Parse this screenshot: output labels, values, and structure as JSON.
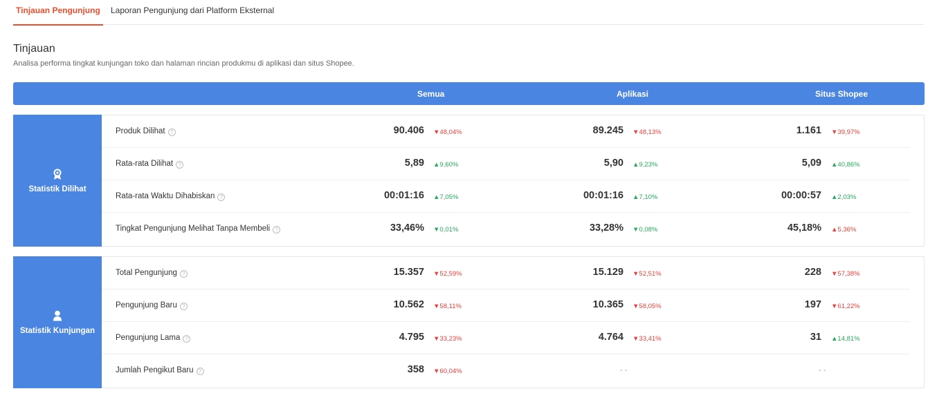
{
  "tabs": [
    {
      "label": "Tinjauan Pengunjung",
      "active": true
    },
    {
      "label": "Laporan Pengunjung dari Platform Eksternal",
      "active": false
    }
  ],
  "header": {
    "title": "Tinjauan",
    "subtitle": "Analisa performa tingkat kunjungan toko dan halaman rincian produkmu di aplikasi dan situs Shopee."
  },
  "columns": [
    "Semua",
    "Aplikasi",
    "Situs Shopee"
  ],
  "colors": {
    "accent": "#ee4d2d",
    "blue": "#4a86e1",
    "down": "#e8413b",
    "up": "#26aa5e"
  },
  "sections": [
    {
      "label": "Statistik Dilihat",
      "icon": "badge-icon",
      "rows": [
        {
          "metric": "Produk Dilihat",
          "cells": [
            {
              "value": "90.406",
              "change": "48,04%",
              "dir": "down"
            },
            {
              "value": "89.245",
              "change": "48,13%",
              "dir": "down"
            },
            {
              "value": "1.161",
              "change": "39,97%",
              "dir": "down"
            }
          ]
        },
        {
          "metric": "Rata-rata Dilihat",
          "cells": [
            {
              "value": "5,89",
              "change": "9,60%",
              "dir": "up"
            },
            {
              "value": "5,90",
              "change": "9,23%",
              "dir": "up"
            },
            {
              "value": "5,09",
              "change": "40,86%",
              "dir": "up"
            }
          ]
        },
        {
          "metric": "Rata-rata Waktu Dihabiskan",
          "cells": [
            {
              "value": "00:01:16",
              "change": "7,05%",
              "dir": "up"
            },
            {
              "value": "00:01:16",
              "change": "7,10%",
              "dir": "up"
            },
            {
              "value": "00:00:57",
              "change": "2,03%",
              "dir": "up"
            }
          ]
        },
        {
          "metric": "Tingkat Pengunjung Melihat Tanpa Membeli",
          "cells": [
            {
              "value": "33,46%",
              "change": "0,01%",
              "dir": "down-green"
            },
            {
              "value": "33,28%",
              "change": "0,08%",
              "dir": "down-green"
            },
            {
              "value": "45,18%",
              "change": "5,36%",
              "dir": "up-red"
            }
          ]
        }
      ]
    },
    {
      "label": "Statistik Kunjungan",
      "icon": "user-icon",
      "rows": [
        {
          "metric": "Total Pengunjung",
          "cells": [
            {
              "value": "15.357",
              "change": "52,59%",
              "dir": "down"
            },
            {
              "value": "15.129",
              "change": "52,51%",
              "dir": "down"
            },
            {
              "value": "228",
              "change": "57,38%",
              "dir": "down"
            }
          ]
        },
        {
          "metric": "Pengunjung Baru",
          "cells": [
            {
              "value": "10.562",
              "change": "58,11%",
              "dir": "down"
            },
            {
              "value": "10.365",
              "change": "58,05%",
              "dir": "down"
            },
            {
              "value": "197",
              "change": "61,22%",
              "dir": "down"
            }
          ]
        },
        {
          "metric": "Pengunjung Lama",
          "cells": [
            {
              "value": "4.795",
              "change": "33,23%",
              "dir": "down"
            },
            {
              "value": "4.764",
              "change": "33,41%",
              "dir": "down"
            },
            {
              "value": "31",
              "change": "14,81%",
              "dir": "up"
            }
          ]
        },
        {
          "metric": "Jumlah Pengikut Baru",
          "cells": [
            {
              "value": "358",
              "change": "60,04%",
              "dir": "down"
            },
            {
              "value": "- -",
              "change": "",
              "dir": "none"
            },
            {
              "value": "- -",
              "change": "",
              "dir": "none"
            }
          ]
        }
      ]
    }
  ]
}
